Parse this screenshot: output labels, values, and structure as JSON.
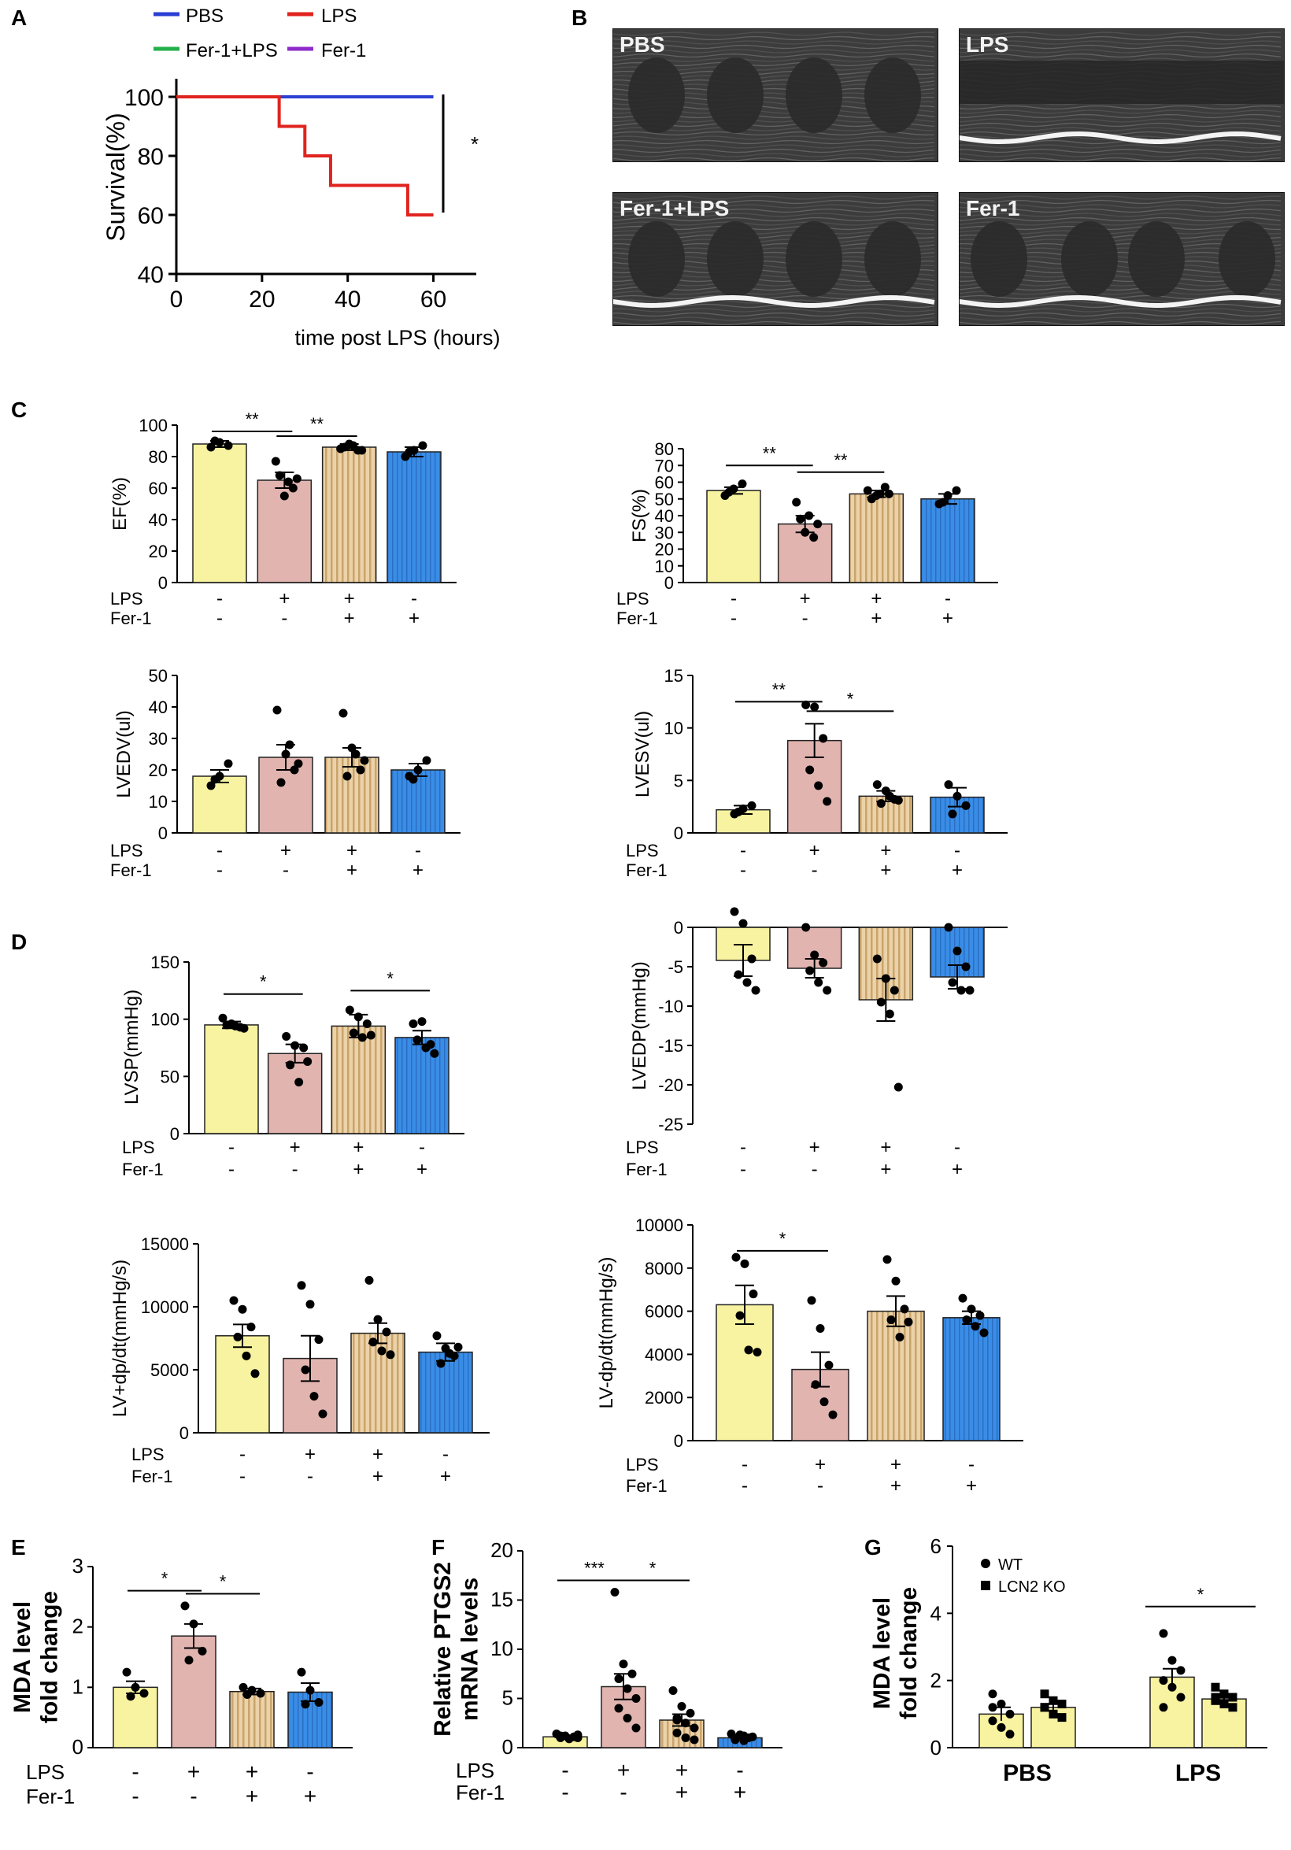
{
  "colors": {
    "pbs": "#2b3fd4",
    "lps": "#e1231f",
    "fer1_lps": "#22b04a",
    "fer1": "#8e2bc9",
    "yellow": "#f7f3a0",
    "pink": "#e1b4b0",
    "striped": "#e9c9a0",
    "blue": "#3c8fe8"
  },
  "panel_labels": {
    "A": "A",
    "B": "B",
    "C": "C",
    "D": "D",
    "E": "E",
    "F": "F",
    "G": "G"
  },
  "echo_labels": [
    "PBS",
    "LPS",
    "Fer-1+LPS",
    "Fer-1"
  ],
  "row_labels": {
    "lps": "LPS",
    "fer1": "Fer-1"
  },
  "signs": {
    "lps": [
      "-",
      "+",
      "+",
      "-"
    ],
    "fer1": [
      "-",
      "-",
      "+",
      "+"
    ]
  },
  "chart_data": [
    {
      "id": "A",
      "type": "line",
      "title": "",
      "xlabel": "time post LPS (hours)",
      "ylabel": "Survival(%)",
      "xlim": [
        0,
        70
      ],
      "ylim": [
        40,
        100
      ],
      "xticks": [
        0,
        20,
        40,
        60
      ],
      "yticks": [
        40,
        60,
        80,
        100
      ],
      "legend": [
        "PBS",
        "LPS",
        "Fer-1+LPS",
        "Fer-1"
      ],
      "series": [
        {
          "name": "PBS",
          "x": [
            0,
            60
          ],
          "y": [
            100,
            100
          ]
        },
        {
          "name": "LPS",
          "x": [
            0,
            24,
            24,
            30,
            30,
            36,
            36,
            54,
            54,
            60
          ],
          "y": [
            100,
            100,
            90,
            90,
            80,
            80,
            70,
            70,
            60,
            60
          ]
        }
      ],
      "annotation": "*"
    },
    {
      "id": "EF",
      "type": "bar",
      "ylabel": "EF(%)",
      "ylim": [
        0,
        100
      ],
      "yticks": [
        0,
        20,
        40,
        60,
        80,
        100
      ],
      "values": [
        88,
        65,
        86,
        83
      ],
      "sem": [
        2,
        5,
        2,
        3
      ],
      "points": [
        [
          86,
          89,
          87,
          90
        ],
        [
          77,
          55,
          60,
          68,
          64,
          66
        ],
        [
          85,
          88,
          84,
          86,
          87,
          84
        ],
        [
          80,
          84,
          87,
          83
        ]
      ],
      "sig": [
        {
          "from": 0,
          "to": 1,
          "label": "**",
          "y": 96
        },
        {
          "from": 1,
          "to": 2,
          "label": "**",
          "y": 93
        }
      ]
    },
    {
      "id": "FS",
      "type": "bar",
      "ylabel": "FS(%)",
      "ylim": [
        0,
        80
      ],
      "yticks": [
        0,
        10,
        20,
        30,
        40,
        50,
        60,
        70,
        80
      ],
      "values": [
        55,
        35,
        53,
        50
      ],
      "sem": [
        2,
        5,
        2,
        3
      ],
      "points": [
        [
          52,
          56,
          59,
          54
        ],
        [
          48,
          30,
          27,
          38,
          40,
          35
        ],
        [
          55,
          52,
          57,
          50,
          53,
          53
        ],
        [
          47,
          52,
          55,
          48
        ]
      ],
      "sig": [
        {
          "from": 0,
          "to": 1,
          "label": "**",
          "y": 70
        },
        {
          "from": 1,
          "to": 2,
          "label": "**",
          "y": 66
        }
      ]
    },
    {
      "id": "LVEDV",
      "type": "bar",
      "ylabel": "LVEDV(ul)",
      "ylim": [
        0,
        50
      ],
      "yticks": [
        0,
        10,
        20,
        30,
        40,
        50
      ],
      "values": [
        18,
        24,
        24,
        20
      ],
      "sem": [
        2,
        4,
        3,
        2
      ],
      "points": [
        [
          15,
          18,
          22,
          17
        ],
        [
          39,
          25,
          20,
          16,
          28,
          22
        ],
        [
          38,
          27,
          20,
          18,
          25,
          23
        ],
        [
          18,
          20,
          23,
          17
        ]
      ],
      "sig": []
    },
    {
      "id": "LVESV",
      "type": "bar",
      "ylabel": "LVESV(ul)",
      "ylim": [
        0,
        15
      ],
      "yticks": [
        0,
        5,
        10,
        15
      ],
      "values": [
        2.2,
        8.8,
        3.5,
        3.4
      ],
      "sem": [
        0.4,
        1.6,
        0.5,
        0.9
      ],
      "points": [
        [
          1.8,
          2.3,
          2.6,
          2.0
        ],
        [
          12.2,
          12.0,
          9.0,
          6.0,
          4.5,
          3.0
        ],
        [
          4.6,
          4.0,
          3.2,
          2.8,
          3.5,
          3.1
        ],
        [
          4.6,
          3.5,
          2.6,
          1.8
        ]
      ],
      "sig": [
        {
          "from": 0,
          "to": 1,
          "label": "**",
          "y": 12.5
        },
        {
          "from": 1,
          "to": 2,
          "label": "*",
          "y": 11.6
        }
      ]
    },
    {
      "id": "LVSP",
      "type": "bar",
      "ylabel": "LVSP(mmHg)",
      "ylim": [
        0,
        150
      ],
      "yticks": [
        0,
        50,
        100,
        150
      ],
      "values": [
        95,
        70,
        94,
        84
      ],
      "sem": [
        3,
        8,
        10,
        6
      ],
      "points": [
        [
          101,
          96,
          93,
          95,
          94,
          92
        ],
        [
          85,
          77,
          75,
          60,
          45,
          63
        ],
        [
          108,
          102,
          96,
          88,
          84,
          86
        ],
        [
          96,
          98,
          78,
          82,
          75,
          70
        ]
      ],
      "sig": [
        {
          "from": 0,
          "to": 1,
          "label": "*",
          "y": 122
        },
        {
          "from": 2,
          "to": 3,
          "label": "*",
          "y": 125
        }
      ]
    },
    {
      "id": "LVEDP",
      "type": "bar",
      "ylabel": "LVEDP(mmHg)",
      "ylim": [
        -25,
        0
      ],
      "yticks": [
        -25,
        -20,
        -15,
        -10,
        -5,
        0
      ],
      "values": [
        -4.2,
        -5.2,
        -9.2,
        -6.3
      ],
      "sem": [
        2.0,
        1.2,
        2.7,
        1.5
      ],
      "points": [
        [
          2.0,
          0.5,
          -4.0,
          -6.0,
          -7.0,
          -8.0
        ],
        [
          0,
          -3.5,
          -4.5,
          -5.5,
          -7.0,
          -8.0
        ],
        [
          -4.0,
          -6.5,
          -8.0,
          -9.5,
          -11.0,
          -20.3
        ],
        [
          0,
          -3.0,
          -5.0,
          -7.0,
          -8.0,
          -8.0
        ]
      ],
      "sig": []
    },
    {
      "id": "LV+dp/dt",
      "type": "bar",
      "ylabel": "LV+dp/dt(mmHg/s)",
      "ylim": [
        0,
        15000
      ],
      "yticks": [
        0,
        5000,
        10000,
        15000
      ],
      "values": [
        7700,
        5900,
        7900,
        6400
      ],
      "sem": [
        900,
        1800,
        800,
        700
      ],
      "points": [
        [
          10500,
          9800,
          8400,
          7600,
          6100,
          4700
        ],
        [
          11700,
          10200,
          7400,
          5000,
          2900,
          1500
        ],
        [
          12100,
          9000,
          8000,
          7200,
          6500,
          6200
        ],
        [
          7700,
          6700,
          6100,
          5500,
          6300,
          6800
        ]
      ],
      "sig": []
    },
    {
      "id": "LV-dp/dt",
      "type": "bar",
      "ylabel": "LV-dp/dt(mmHg/s)",
      "ylim": [
        0,
        10000
      ],
      "yticks": [
        0,
        2000,
        4000,
        6000,
        8000,
        10000
      ],
      "values": [
        6300,
        3300,
        6000,
        5700
      ],
      "sem": [
        900,
        800,
        700,
        300
      ],
      "points": [
        [
          8500,
          8200,
          6800,
          5800,
          4200,
          4100
        ],
        [
          6500,
          5200,
          3500,
          2600,
          1800,
          1200
        ],
        [
          8400,
          7400,
          6100,
          5600,
          4800,
          5500
        ],
        [
          6600,
          6100,
          5800,
          5600,
          5300,
          5000
        ]
      ],
      "sig": [
        {
          "from": 0,
          "to": 1,
          "label": "*",
          "y": 8800
        }
      ]
    },
    {
      "id": "E",
      "type": "bar",
      "ylabel": "MDA level\nfold change",
      "ylim": [
        0,
        3
      ],
      "yticks": [
        0,
        1,
        2,
        3
      ],
      "values": [
        1.0,
        1.85,
        0.93,
        0.92
      ],
      "sem": [
        0.1,
        0.2,
        0.05,
        0.15
      ],
      "points": [
        [
          1.25,
          1.0,
          0.9,
          0.85
        ],
        [
          2.35,
          2.05,
          1.6,
          1.45
        ],
        [
          1.0,
          0.95,
          0.9,
          0.88
        ],
        [
          1.25,
          0.95,
          0.75,
          0.72
        ]
      ],
      "sig": [
        {
          "from": 0,
          "to": 1,
          "label": "*",
          "y": 2.6
        },
        {
          "from": 1,
          "to": 2,
          "label": "*",
          "y": 2.55
        }
      ]
    },
    {
      "id": "F",
      "type": "bar",
      "ylabel": "Relative PTGS2\nmRNA levels",
      "ylim": [
        0,
        20
      ],
      "yticks": [
        0,
        5,
        10,
        15,
        20
      ],
      "values": [
        1.1,
        6.2,
        2.8,
        1.0
      ],
      "sem": [
        0.1,
        1.3,
        0.6,
        0.1
      ],
      "points": [
        [
          1.4,
          1.2,
          1.1,
          1.0,
          0.9,
          1.3,
          1.1,
          0.9,
          1.0,
          1.2
        ],
        [
          15.8,
          8.5,
          7.5,
          7.0,
          6.0,
          5.0,
          4.0,
          3.0,
          2.0
        ],
        [
          5.8,
          4.2,
          3.5,
          3.0,
          2.5,
          2.0,
          1.5,
          1.0,
          0.8,
          2.8
        ],
        [
          1.4,
          1.3,
          1.0,
          0.8,
          0.7,
          1.1,
          0.9,
          1.2
        ]
      ],
      "sig": [
        {
          "from": 0,
          "to": 1,
          "label": "***",
          "y": 17
        },
        {
          "from": 1,
          "to": 2,
          "label": "*",
          "y": 17
        }
      ]
    },
    {
      "id": "G",
      "type": "bar",
      "ylabel": "MDA level\nfold change",
      "ylim": [
        0,
        6
      ],
      "yticks": [
        0,
        2,
        4,
        6
      ],
      "categories": [
        "PBS",
        "LPS"
      ],
      "series": [
        {
          "name": "WT",
          "values": [
            1.0,
            2.1
          ],
          "sem": [
            0.2,
            0.25
          ],
          "points": [
            [
              1.6,
              1.3,
              1.0,
              0.8,
              0.6,
              0.4,
              1.2
            ],
            [
              3.4,
              2.6,
              2.3,
              2.0,
              1.8,
              1.5,
              1.2
            ]
          ]
        },
        {
          "name": "LCN2 KO",
          "values": [
            1.2,
            1.45
          ],
          "sem": [
            0.1,
            0.1
          ],
          "points": [
            [
              1.6,
              1.4,
              1.3,
              1.2,
              1.0,
              0.9,
              1.2
            ],
            [
              1.8,
              1.6,
              1.5,
              1.4,
              1.3,
              1.2,
              1.5
            ]
          ]
        }
      ],
      "sig": [
        {
          "label": "*",
          "y": 4.2
        }
      ]
    }
  ]
}
